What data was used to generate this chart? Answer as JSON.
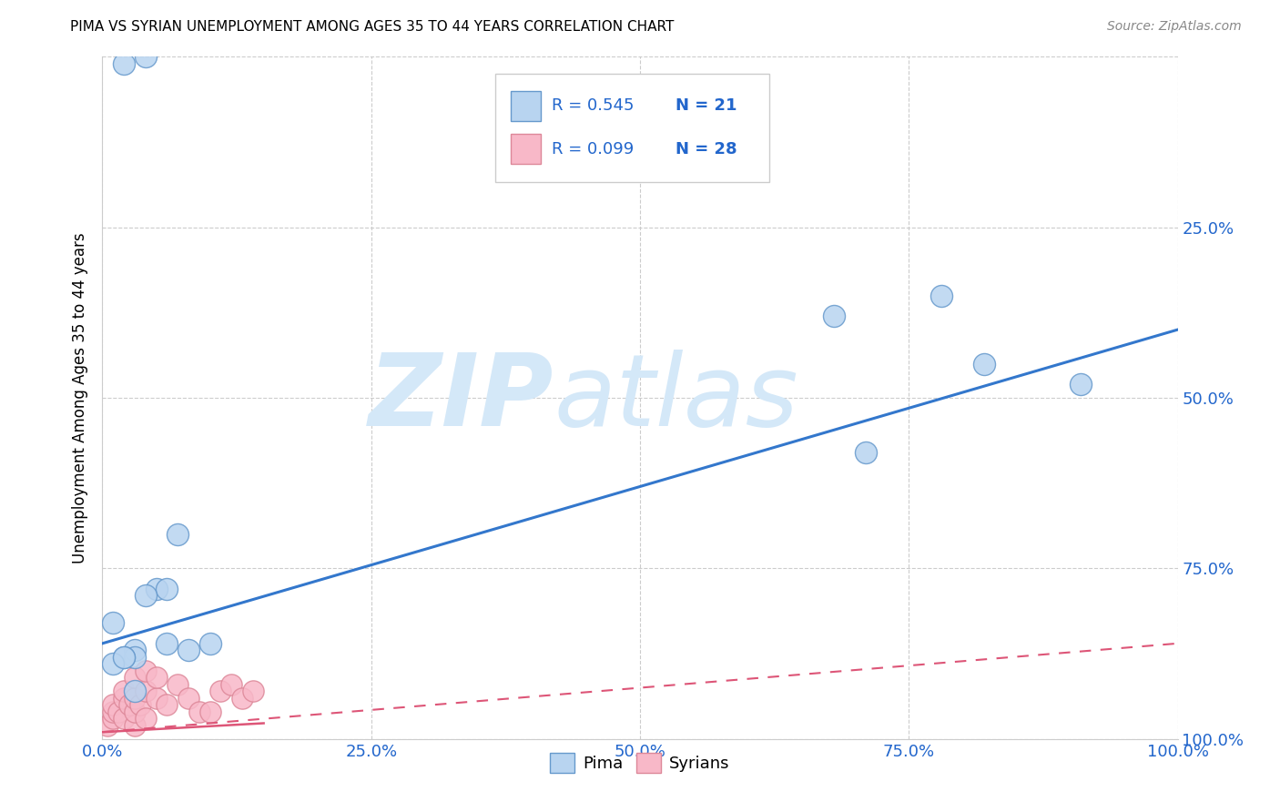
{
  "title": "PIMA VS SYRIAN UNEMPLOYMENT AMONG AGES 35 TO 44 YEARS CORRELATION CHART",
  "source": "Source: ZipAtlas.com",
  "ylabel": "Unemployment Among Ages 35 to 44 years",
  "xlim": [
    0,
    1.0
  ],
  "ylim": [
    0,
    1.0
  ],
  "xticks": [
    0.0,
    0.25,
    0.5,
    0.75,
    1.0
  ],
  "yticks": [
    0.0,
    0.25,
    0.5,
    0.75,
    1.0
  ],
  "xticklabels": [
    "0.0%",
    "25.0%",
    "50.0%",
    "75.0%",
    "100.0%"
  ],
  "yticklabels_right": [
    "100.0%",
    "75.0%",
    "50.0%",
    "25.0%",
    ""
  ],
  "pima_x": [
    0.04,
    0.02,
    0.07,
    0.05,
    0.68,
    0.78,
    0.71,
    0.82,
    0.91,
    0.1,
    0.06,
    0.03,
    0.08,
    0.04,
    0.03,
    0.06,
    0.01,
    0.02,
    0.01,
    0.03,
    0.02
  ],
  "pima_y": [
    1.0,
    0.99,
    0.3,
    0.22,
    0.62,
    0.65,
    0.42,
    0.55,
    0.52,
    0.14,
    0.22,
    0.13,
    0.13,
    0.21,
    0.12,
    0.14,
    0.17,
    0.12,
    0.11,
    0.07,
    0.12
  ],
  "syrian_x": [
    0.005,
    0.01,
    0.01,
    0.01,
    0.015,
    0.02,
    0.02,
    0.02,
    0.025,
    0.03,
    0.03,
    0.03,
    0.03,
    0.035,
    0.04,
    0.04,
    0.04,
    0.05,
    0.05,
    0.06,
    0.07,
    0.08,
    0.09,
    0.1,
    0.11,
    0.12,
    0.13,
    0.14
  ],
  "syrian_y": [
    0.02,
    0.03,
    0.04,
    0.05,
    0.04,
    0.03,
    0.06,
    0.07,
    0.05,
    0.02,
    0.04,
    0.06,
    0.09,
    0.05,
    0.03,
    0.07,
    0.1,
    0.06,
    0.09,
    0.05,
    0.08,
    0.06,
    0.04,
    0.04,
    0.07,
    0.08,
    0.06,
    0.07
  ],
  "pima_color": "#b8d4f0",
  "pima_edge_color": "#6699cc",
  "syrian_color": "#f8b8c8",
  "syrian_edge_color": "#dd8899",
  "pima_R": 0.545,
  "pima_N": 21,
  "syrian_R": 0.099,
  "syrian_N": 28,
  "trend_pima_color": "#3377cc",
  "trend_syrian_color": "#dd5577",
  "trend_pima_y0": 0.14,
  "trend_pima_y1": 0.6,
  "trend_syrian_y0": 0.01,
  "trend_syrian_y1": 0.14,
  "watermark_zip": "ZIP",
  "watermark_atlas": "atlas",
  "watermark_color": "#d4e8f8",
  "legend_R_color": "#2266cc",
  "legend_N_color": "#2266cc",
  "background_color": "#ffffff",
  "grid_color": "#cccccc"
}
